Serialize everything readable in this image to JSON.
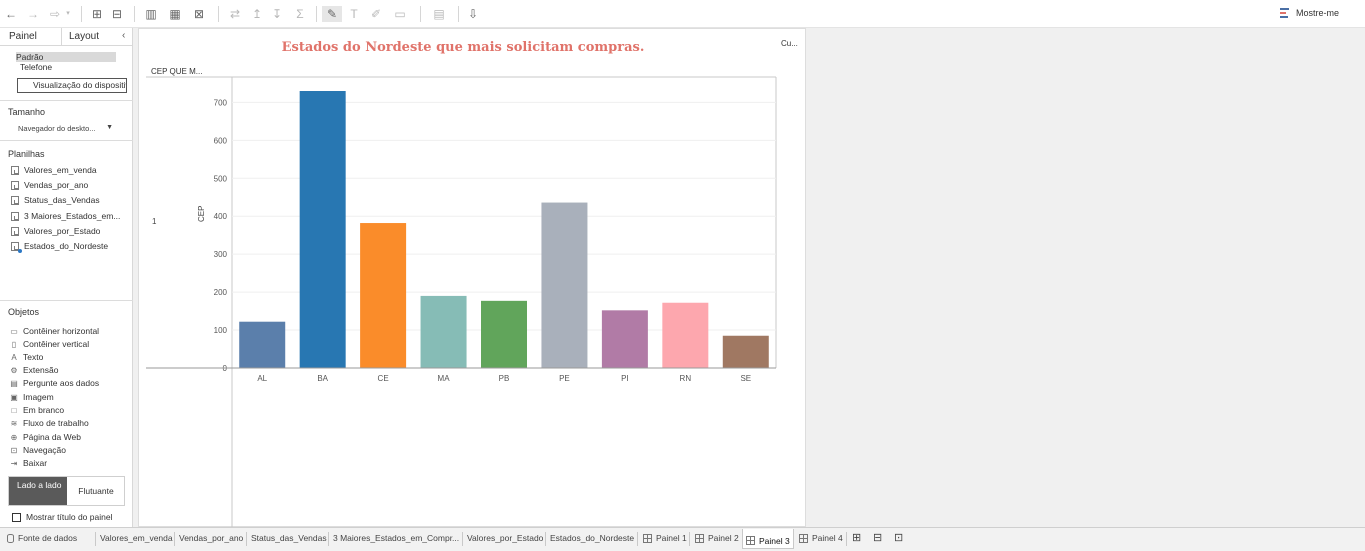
{
  "toolbar": {
    "buttons": [
      "back-icon",
      "forward-icon",
      "redo-icon",
      "new-worksheet-icon",
      "new-datasource-icon",
      "add-chart-icon",
      "duplicate-icon",
      "clear-icon",
      "swap-icon",
      "sort-asc-icon",
      "sort-desc-icon",
      "sum-icon",
      "pen-icon",
      "text-icon",
      "annotate-icon",
      "fit-icon",
      "present-icon",
      "share-icon"
    ],
    "show_me_label": "Mostre-me"
  },
  "left_panel": {
    "tab_panel": "Painel",
    "tab_layout": "Layout",
    "devices": [
      "Padrão",
      "Telefone"
    ],
    "preview_button": "Visualização do dispositivo",
    "size_title": "Tamanho",
    "size_value": "Navegador do deskto...",
    "sheets_title": "Planilhas",
    "sheets": [
      "Valores_em_venda",
      "Vendas_por_ano",
      "Status_das_Vendas",
      "3 Maiores_Estados_em...",
      "Valores_por_Estado",
      "Estados_do_Nordeste"
    ],
    "objects_title": "Objetos",
    "objects": [
      {
        "label": "Contêiner horizontal",
        "icon": "horizontal-container-icon",
        "glyph": "▭"
      },
      {
        "label": "Contêiner vertical",
        "icon": "vertical-container-icon",
        "glyph": "▯"
      },
      {
        "label": "Texto",
        "icon": "text-icon",
        "glyph": "A"
      },
      {
        "label": "Extensão",
        "icon": "extension-icon",
        "glyph": "⚙"
      },
      {
        "label": "Pergunte aos dados",
        "icon": "ask-data-icon",
        "glyph": "▤"
      },
      {
        "label": "Imagem",
        "icon": "image-icon",
        "glyph": "▣"
      },
      {
        "label": "Em branco",
        "icon": "blank-icon",
        "glyph": "□"
      },
      {
        "label": "Fluxo de trabalho",
        "icon": "workflow-icon",
        "glyph": "≋"
      },
      {
        "label": "Página da Web",
        "icon": "web-page-icon",
        "glyph": "⊕"
      },
      {
        "label": "Navegação",
        "icon": "navigation-icon",
        "glyph": "⊡"
      },
      {
        "label": "Baixar",
        "icon": "download-icon",
        "glyph": "⇥"
      }
    ],
    "toggle_tiled": "Lado a lado",
    "toggle_floating": "Flutuante",
    "show_title_label": "Mostrar título do painel"
  },
  "dashboard": {
    "title": "Estados do Nordeste que mais solicitam compras.",
    "side_label": "Cu...",
    "column_header": "CEP QUE M...",
    "row_label": "1"
  },
  "chart_data": {
    "type": "bar",
    "title": "Estados do Nordeste que mais solicitam compras.",
    "xlabel": "",
    "ylabel": "CEP",
    "categories": [
      "AL",
      "BA",
      "CE",
      "MA",
      "PB",
      "PE",
      "PI",
      "RN",
      "SE"
    ],
    "values": [
      122,
      730,
      382,
      190,
      177,
      436,
      152,
      172,
      85
    ],
    "colors": [
      "#5b7fab",
      "#2877b2",
      "#fa8c2a",
      "#86bcb6",
      "#61a55b",
      "#a9b0bb",
      "#b17ba6",
      "#fda7ae",
      "#a07862"
    ],
    "yticks": [
      0,
      100,
      200,
      300,
      400,
      500,
      600,
      700
    ],
    "ylim": [
      0,
      730
    ],
    "grid": true,
    "legend": "none"
  },
  "bottom_tabs": {
    "data_source": "Fonte de dados",
    "sheets": [
      "Valores_em_venda",
      "Vendas_por_ano",
      "Status_das_Vendas",
      "3 Maiores_Estados_em_Compr...",
      "Valores_por_Estado",
      "Estados_do_Nordeste"
    ],
    "dashboards": [
      "Painel 1",
      "Painel 2",
      "Painel 3",
      "Painel 4"
    ],
    "active": "Painel 3"
  }
}
